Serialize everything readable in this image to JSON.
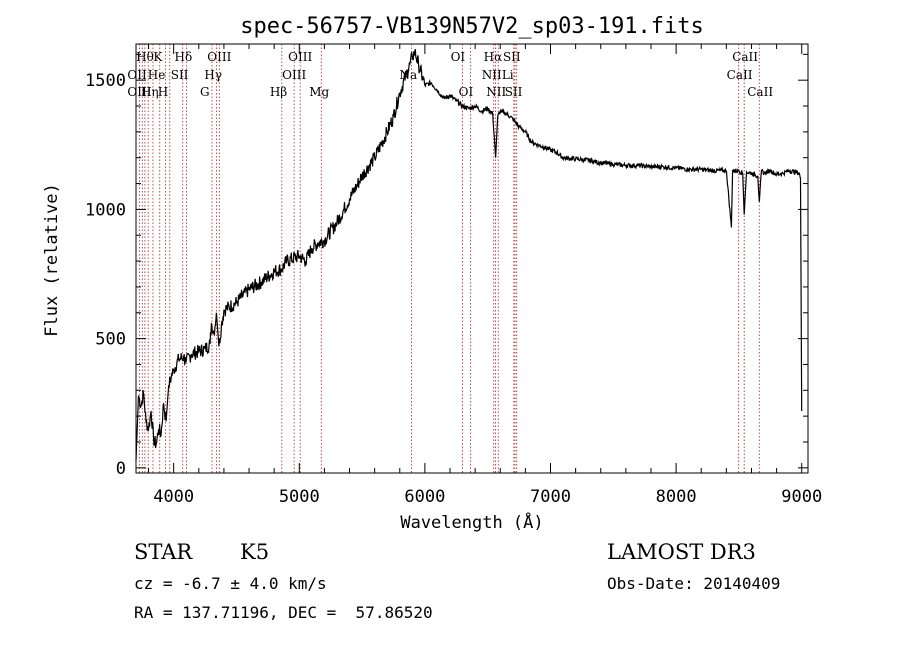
{
  "chart_data": {
    "type": "line",
    "title": "spec-56757-VB139N57V2_sp03-191.fits",
    "xlabel": "Wavelength (Å)",
    "ylabel": "Flux (relative)",
    "xlim": [
      3700,
      9050
    ],
    "ylim": [
      -20,
      1640
    ],
    "xticks": [
      4000,
      5000,
      6000,
      7000,
      8000,
      9000
    ],
    "yticks": [
      0,
      500,
      1000,
      1500
    ],
    "series": [
      {
        "name": "flux",
        "x": [
          3700,
          3720,
          3740,
          3760,
          3780,
          3800,
          3820,
          3840,
          3860,
          3880,
          3900,
          3920,
          3940,
          3960,
          3980,
          4000,
          4040,
          4080,
          4100,
          4140,
          4200,
          4250,
          4290,
          4300,
          4320,
          4340,
          4360,
          4380,
          4400,
          4500,
          4600,
          4700,
          4800,
          4860,
          4900,
          5000,
          5050,
          5100,
          5150,
          5200,
          5300,
          5400,
          5500,
          5600,
          5700,
          5750,
          5800,
          5850,
          5880,
          5900,
          5920,
          5950,
          6000,
          6050,
          6100,
          6150,
          6200,
          6250,
          6300,
          6350,
          6400,
          6450,
          6500,
          6540,
          6563,
          6580,
          6600,
          6650,
          6700,
          6750,
          6800,
          6850,
          6900,
          6950,
          7000,
          7050,
          7100,
          7200,
          7300,
          7400,
          7500,
          7600,
          7700,
          7800,
          7900,
          8000,
          8100,
          8200,
          8300,
          8400,
          8440,
          8450,
          8460,
          8500,
          8530,
          8542,
          8560,
          8600,
          8650,
          8662,
          8680,
          8700,
          8750,
          8800,
          8850,
          8900,
          8950,
          8980,
          8990,
          9000
        ],
        "values": [
          30,
          280,
          240,
          290,
          180,
          150,
          220,
          110,
          90,
          150,
          130,
          250,
          180,
          320,
          350,
          380,
          420,
          430,
          410,
          440,
          450,
          460,
          480,
          560,
          520,
          600,
          470,
          550,
          610,
          640,
          690,
          720,
          760,
          770,
          800,
          820,
          800,
          850,
          870,
          880,
          950,
          1040,
          1130,
          1200,
          1300,
          1360,
          1450,
          1520,
          1560,
          1590,
          1610,
          1560,
          1480,
          1490,
          1460,
          1430,
          1440,
          1420,
          1400,
          1390,
          1400,
          1380,
          1390,
          1370,
          1200,
          1360,
          1380,
          1370,
          1350,
          1320,
          1300,
          1260,
          1250,
          1240,
          1230,
          1220,
          1200,
          1195,
          1190,
          1180,
          1175,
          1170,
          1170,
          1165,
          1165,
          1160,
          1155,
          1155,
          1150,
          1150,
          930,
          1150,
          1150,
          1150,
          1140,
          980,
          1145,
          1140,
          1130,
          1030,
          1150,
          1140,
          1150,
          1135,
          1140,
          1150,
          1145,
          1140,
          1120,
          220
        ]
      }
    ],
    "line_labels": [
      {
        "text": "Hθ",
        "x": 3797,
        "row": 0
      },
      {
        "text": "OII",
        "x": 3727,
        "row": 1
      },
      {
        "text": "OIII",
        "x": 3727,
        "row": 2
      },
      {
        "text": "K",
        "x": 3934,
        "row": 0
      },
      {
        "text": "He",
        "x": 3889,
        "row": 1
      },
      {
        "text": "Hη",
        "x": 3835,
        "row": 2
      },
      {
        "text": "Hδ",
        "x": 4102,
        "row": 0
      },
      {
        "text": "SII",
        "x": 4072,
        "row": 1
      },
      {
        "text": "H",
        "x": 3969,
        "row": 2
      },
      {
        "text": "OIII",
        "x": 4363,
        "row": 0
      },
      {
        "text": "Hγ",
        "x": 4340,
        "row": 1
      },
      {
        "text": "G",
        "x": 4305,
        "row": 2
      },
      {
        "text": "OIII",
        "x": 5007,
        "row": 0
      },
      {
        "text": "OIII",
        "x": 4959,
        "row": 1
      },
      {
        "text": "Hβ",
        "x": 4861,
        "row": 2
      },
      {
        "text": "Mg",
        "x": 5175,
        "row": 2
      },
      {
        "text": "Na",
        "x": 5893,
        "row": 1
      },
      {
        "text": "OI",
        "x": 6300,
        "row": 0
      },
      {
        "text": "OI",
        "x": 6364,
        "row": 2
      },
      {
        "text": "Hα",
        "x": 6563,
        "row": 0
      },
      {
        "text": "SII",
        "x": 6717,
        "row": 0
      },
      {
        "text": "NII",
        "x": 6548,
        "row": 1
      },
      {
        "text": "Li",
        "x": 6708,
        "row": 1
      },
      {
        "text": "NII",
        "x": 6584,
        "row": 2
      },
      {
        "text": "SII",
        "x": 6731,
        "row": 2
      },
      {
        "text": "CaII",
        "x": 8542,
        "row": 0
      },
      {
        "text": "CaII",
        "x": 8498,
        "row": 1
      },
      {
        "text": "CaII",
        "x": 8662,
        "row": 2
      }
    ],
    "marker_lines": [
      3727,
      3750,
      3771,
      3797,
      3835,
      3889,
      3934,
      3969,
      4072,
      4102,
      4305,
      4340,
      4363,
      4861,
      4959,
      5007,
      5175,
      5893,
      6300,
      6364,
      6548,
      6563,
      6584,
      6708,
      6717,
      6731,
      8498,
      8542,
      8662
    ]
  },
  "info": {
    "class_label": "STAR",
    "subclass": "K5",
    "cz": "cz = -6.7 ± 4.0 km/s",
    "coords": "RA = 137.71196, DEC =  57.86520",
    "survey": "LAMOST DR3",
    "obs_date": "Obs-Date: 20140409"
  },
  "colors": {
    "axis": "#000000",
    "marker": "#b22222",
    "spectrum": "#000000"
  }
}
